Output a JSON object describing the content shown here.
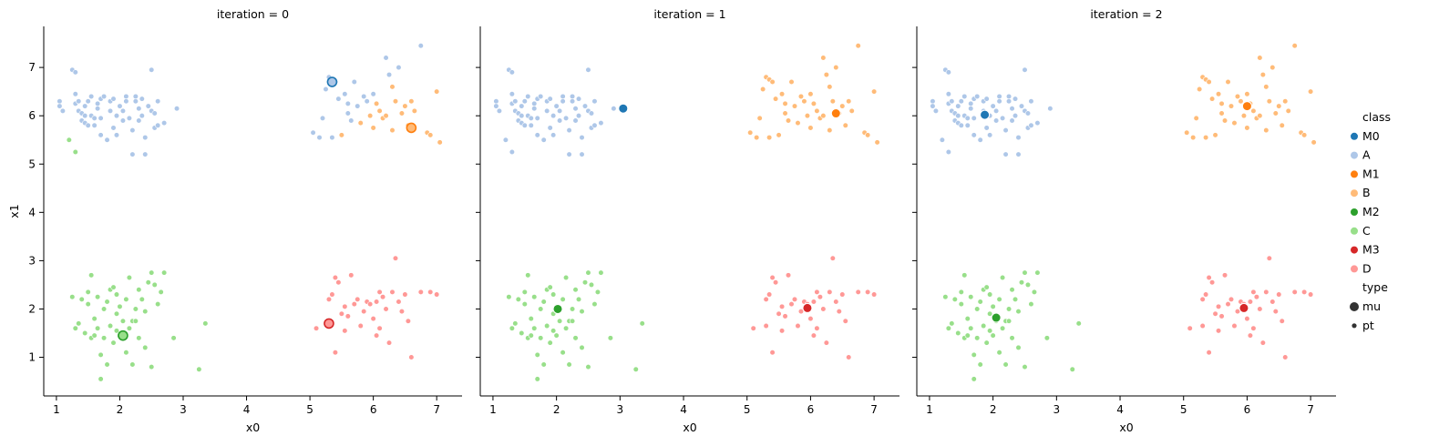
{
  "colors": {
    "M0": "#1f77b4",
    "A": "#aec7e8",
    "M1": "#ff7f0e",
    "B": "#ffbb78",
    "M2": "#2ca02c",
    "C": "#98df8a",
    "M3": "#d62728",
    "D": "#ff9896"
  },
  "legend": {
    "class_title": "class",
    "class_items": [
      "M0",
      "A",
      "M1",
      "B",
      "M2",
      "C",
      "M3",
      "D"
    ],
    "type_title": "type",
    "type_items": [
      {
        "label": "mu",
        "size": "large"
      },
      {
        "label": "pt",
        "size": "small"
      }
    ]
  },
  "chart_data": {
    "type": "scatter",
    "facet_column": "iteration",
    "xlabel": "x0",
    "ylabel": "x1",
    "xlim": [
      0.8,
      7.4
    ],
    "ylim": [
      0.2,
      7.85
    ],
    "xticks": [
      1,
      2,
      3,
      4,
      5,
      6,
      7
    ],
    "yticks": [
      1,
      2,
      3,
      4,
      5,
      6,
      7
    ],
    "grid": false,
    "legend_position": "right",
    "points": {
      "A": [
        [
          1.05,
          6.3
        ],
        [
          1.05,
          6.2
        ],
        [
          1.1,
          6.1
        ],
        [
          1.25,
          6.95
        ],
        [
          1.3,
          6.9
        ],
        [
          1.3,
          6.45
        ],
        [
          1.3,
          6.25
        ],
        [
          1.35,
          6.3
        ],
        [
          1.35,
          6.1
        ],
        [
          1.4,
          6.05
        ],
        [
          1.4,
          5.9
        ],
        [
          1.45,
          6.2
        ],
        [
          1.45,
          6.0
        ],
        [
          1.45,
          5.85
        ],
        [
          1.5,
          6.3
        ],
        [
          1.5,
          5.8
        ],
        [
          1.55,
          6.4
        ],
        [
          1.55,
          6.0
        ],
        [
          1.6,
          5.95
        ],
        [
          1.6,
          5.8
        ],
        [
          1.65,
          6.25
        ],
        [
          1.65,
          6.15
        ],
        [
          1.7,
          6.35
        ],
        [
          1.7,
          5.95
        ],
        [
          1.7,
          5.6
        ],
        [
          1.75,
          6.4
        ],
        [
          1.8,
          5.5
        ],
        [
          1.85,
          6.3
        ],
        [
          1.85,
          6.1
        ],
        [
          1.9,
          6.35
        ],
        [
          1.9,
          5.75
        ],
        [
          1.95,
          6.0
        ],
        [
          1.95,
          5.6
        ],
        [
          2.0,
          6.2
        ],
        [
          2.05,
          6.1
        ],
        [
          2.05,
          5.9
        ],
        [
          2.1,
          6.4
        ],
        [
          2.1,
          6.3
        ],
        [
          2.15,
          5.95
        ],
        [
          2.2,
          5.7
        ],
        [
          2.2,
          5.2
        ],
        [
          2.25,
          6.4
        ],
        [
          2.25,
          6.3
        ],
        [
          2.3,
          6.15
        ],
        [
          2.3,
          5.9
        ],
        [
          2.35,
          6.35
        ],
        [
          2.35,
          6.0
        ],
        [
          2.4,
          5.55
        ],
        [
          2.4,
          5.2
        ],
        [
          2.45,
          6.2
        ],
        [
          2.5,
          6.95
        ],
        [
          2.5,
          6.1
        ],
        [
          2.55,
          6.05
        ],
        [
          2.55,
          5.75
        ],
        [
          2.6,
          6.3
        ],
        [
          2.6,
          5.8
        ],
        [
          2.7,
          5.85
        ],
        [
          2.9,
          6.15
        ],
        [
          1.3,
          5.25
        ],
        [
          1.2,
          5.5
        ]
      ],
      "B": [
        [
          5.05,
          5.65
        ],
        [
          5.15,
          5.55
        ],
        [
          5.2,
          5.95
        ],
        [
          5.3,
          6.8
        ],
        [
          5.35,
          6.75
        ],
        [
          5.4,
          6.7
        ],
        [
          5.45,
          6.35
        ],
        [
          5.5,
          5.6
        ],
        [
          5.55,
          6.45
        ],
        [
          5.6,
          6.25
        ],
        [
          5.6,
          6.05
        ],
        [
          5.65,
          5.9
        ],
        [
          5.7,
          6.7
        ],
        [
          5.75,
          6.2
        ],
        [
          5.8,
          5.85
        ],
        [
          5.85,
          6.4
        ],
        [
          5.9,
          6.3
        ],
        [
          5.95,
          6.0
        ],
        [
          6.0,
          5.75
        ],
        [
          6.05,
          6.25
        ],
        [
          6.1,
          6.1
        ],
        [
          6.15,
          5.95
        ],
        [
          6.2,
          7.2
        ],
        [
          6.25,
          6.85
        ],
        [
          6.3,
          6.6
        ],
        [
          6.35,
          6.3
        ],
        [
          6.4,
          7.0
        ],
        [
          6.45,
          6.05
        ],
        [
          6.5,
          6.2
        ],
        [
          6.55,
          5.8
        ],
        [
          6.6,
          6.3
        ],
        [
          6.65,
          6.1
        ],
        [
          6.75,
          7.45
        ],
        [
          6.85,
          5.65
        ],
        [
          6.9,
          5.6
        ],
        [
          7.0,
          6.5
        ],
        [
          7.05,
          5.45
        ],
        [
          6.2,
          6.0
        ],
        [
          5.25,
          6.55
        ],
        [
          5.35,
          5.55
        ],
        [
          6.3,
          5.7
        ],
        [
          6.0,
          6.45
        ]
      ],
      "C": [
        [
          1.25,
          2.25
        ],
        [
          1.3,
          1.6
        ],
        [
          1.35,
          1.7
        ],
        [
          1.4,
          2.2
        ],
        [
          1.45,
          1.5
        ],
        [
          1.5,
          2.35
        ],
        [
          1.5,
          2.1
        ],
        [
          1.55,
          1.4
        ],
        [
          1.55,
          2.7
        ],
        [
          1.6,
          1.8
        ],
        [
          1.65,
          2.25
        ],
        [
          1.65,
          1.6
        ],
        [
          1.7,
          1.05
        ],
        [
          1.7,
          0.55
        ],
        [
          1.75,
          2.0
        ],
        [
          1.75,
          1.4
        ],
        [
          1.8,
          2.15
        ],
        [
          1.8,
          0.85
        ],
        [
          1.85,
          2.4
        ],
        [
          1.85,
          1.65
        ],
        [
          1.9,
          2.45
        ],
        [
          1.9,
          1.3
        ],
        [
          1.95,
          1.9
        ],
        [
          1.95,
          2.3
        ],
        [
          2.0,
          2.05
        ],
        [
          2.0,
          1.45
        ],
        [
          2.05,
          1.75
        ],
        [
          2.1,
          2.2
        ],
        [
          2.1,
          1.1
        ],
        [
          2.15,
          1.6
        ],
        [
          2.15,
          2.65
        ],
        [
          2.2,
          1.75
        ],
        [
          2.2,
          0.85
        ],
        [
          2.25,
          2.0
        ],
        [
          2.3,
          1.4
        ],
        [
          2.3,
          2.4
        ],
        [
          2.35,
          2.2
        ],
        [
          2.4,
          1.95
        ],
        [
          2.4,
          1.2
        ],
        [
          2.45,
          2.55
        ],
        [
          2.5,
          2.75
        ],
        [
          2.5,
          0.8
        ],
        [
          2.55,
          2.5
        ],
        [
          2.6,
          2.1
        ],
        [
          2.65,
          2.35
        ],
        [
          2.7,
          2.75
        ],
        [
          2.85,
          1.4
        ],
        [
          3.25,
          0.75
        ],
        [
          3.35,
          1.7
        ],
        [
          1.6,
          1.45
        ],
        [
          2.25,
          1.75
        ],
        [
          1.95,
          1.55
        ]
      ],
      "D": [
        [
          5.1,
          1.6
        ],
        [
          5.3,
          1.65
        ],
        [
          5.3,
          2.2
        ],
        [
          5.35,
          2.3
        ],
        [
          5.4,
          2.65
        ],
        [
          5.4,
          1.1
        ],
        [
          5.45,
          2.55
        ],
        [
          5.5,
          1.9
        ],
        [
          5.55,
          1.55
        ],
        [
          5.6,
          1.85
        ],
        [
          5.65,
          2.7
        ],
        [
          5.7,
          2.1
        ],
        [
          5.75,
          2.2
        ],
        [
          5.8,
          1.65
        ],
        [
          5.85,
          1.95
        ],
        [
          5.9,
          2.15
        ],
        [
          5.95,
          2.1
        ],
        [
          6.0,
          1.8
        ],
        [
          6.05,
          1.45
        ],
        [
          6.1,
          2.35
        ],
        [
          6.15,
          2.25
        ],
        [
          6.2,
          2.0
        ],
        [
          6.25,
          1.3
        ],
        [
          6.3,
          2.35
        ],
        [
          6.35,
          3.05
        ],
        [
          6.4,
          2.15
        ],
        [
          6.45,
          1.95
        ],
        [
          6.5,
          2.3
        ],
        [
          6.55,
          1.75
        ],
        [
          6.6,
          1.0
        ],
        [
          6.75,
          2.35
        ],
        [
          6.9,
          2.35
        ],
        [
          7.0,
          2.3
        ],
        [
          6.05,
          2.15
        ],
        [
          5.55,
          2.05
        ],
        [
          6.1,
          1.6
        ]
      ]
    },
    "iterations": [
      {
        "label": "iteration = 0",
        "mu": {
          "M0": [
            5.35,
            6.7
          ],
          "M1": [
            6.6,
            5.75
          ],
          "M2": [
            2.05,
            1.45
          ],
          "M3": [
            5.3,
            1.7
          ]
        }
      },
      {
        "label": "iteration = 1",
        "mu": {
          "M0": [
            3.05,
            6.15
          ],
          "M1": [
            6.4,
            6.05
          ],
          "M2": [
            2.02,
            2.0
          ],
          "M3": [
            5.95,
            2.02
          ]
        }
      },
      {
        "label": "iteration = 2",
        "mu": {
          "M0": [
            1.87,
            6.02
          ],
          "M1": [
            6.0,
            6.2
          ],
          "M2": [
            2.05,
            1.82
          ],
          "M3": [
            5.95,
            2.02
          ]
        }
      }
    ]
  }
}
